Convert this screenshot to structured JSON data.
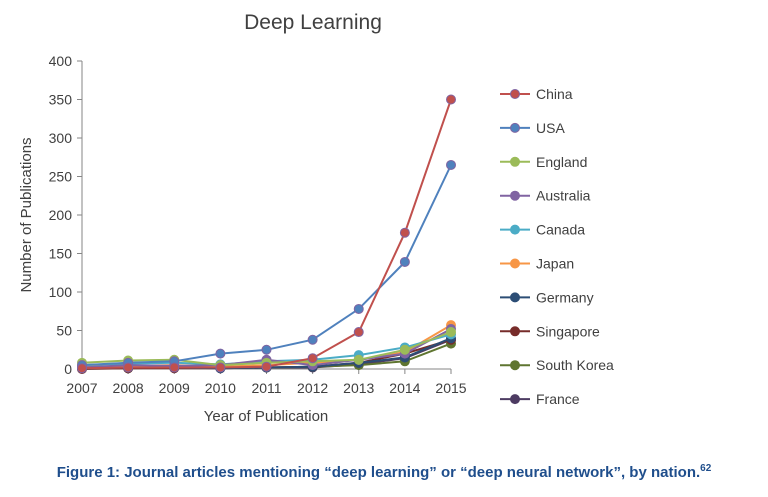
{
  "chart_data": {
    "type": "line",
    "title": "Deep Learning",
    "xlabel": "Year of Publication",
    "ylabel": "Number of Publications",
    "x": [
      "2007",
      "2008",
      "2009",
      "2010",
      "2011",
      "2012",
      "2013",
      "2014",
      "2015"
    ],
    "ylim": [
      0,
      400
    ],
    "yticks": [
      "0",
      "50",
      "100",
      "150",
      "200",
      "250",
      "300",
      "350",
      "400"
    ],
    "grid": false,
    "legend": "right",
    "series": [
      {
        "name": "China",
        "color": "#c0504d",
        "values": [
          1,
          2,
          2,
          2,
          3,
          14,
          48,
          177,
          350
        ]
      },
      {
        "name": "USA",
        "color": "#4f81bd",
        "values": [
          5,
          8,
          10,
          20,
          25,
          38,
          78,
          139,
          265
        ]
      },
      {
        "name": "England",
        "color": "#9bbb59",
        "values": [
          8,
          11,
          12,
          5,
          8,
          10,
          12,
          25,
          48
        ]
      },
      {
        "name": "Australia",
        "color": "#8064a2",
        "values": [
          2,
          5,
          4,
          5,
          12,
          5,
          12,
          20,
          52
        ]
      },
      {
        "name": "Canada",
        "color": "#4bacc6",
        "values": [
          5,
          7,
          8,
          6,
          10,
          12,
          18,
          28,
          45
        ]
      },
      {
        "name": "Japan",
        "color": "#f79646",
        "values": [
          3,
          4,
          5,
          3,
          5,
          8,
          12,
          22,
          57
        ]
      },
      {
        "name": "Germany",
        "color": "#2c4d75",
        "values": [
          1,
          2,
          2,
          1,
          2,
          3,
          8,
          15,
          40
        ]
      },
      {
        "name": "Singapore",
        "color": "#772c2a",
        "values": [
          0,
          1,
          1,
          1,
          2,
          3,
          8,
          20,
          38
        ]
      },
      {
        "name": "South Korea",
        "color": "#5f7530",
        "values": [
          1,
          1,
          2,
          2,
          2,
          3,
          5,
          10,
          33
        ]
      },
      {
        "name": "France",
        "color": "#4d3b62",
        "values": [
          1,
          1,
          2,
          1,
          2,
          2,
          6,
          14,
          38
        ]
      }
    ]
  },
  "caption": {
    "text": "Figure 1: Journal articles mentioning “deep learning” or “deep neural network”, by nation.",
    "ref": "62"
  }
}
